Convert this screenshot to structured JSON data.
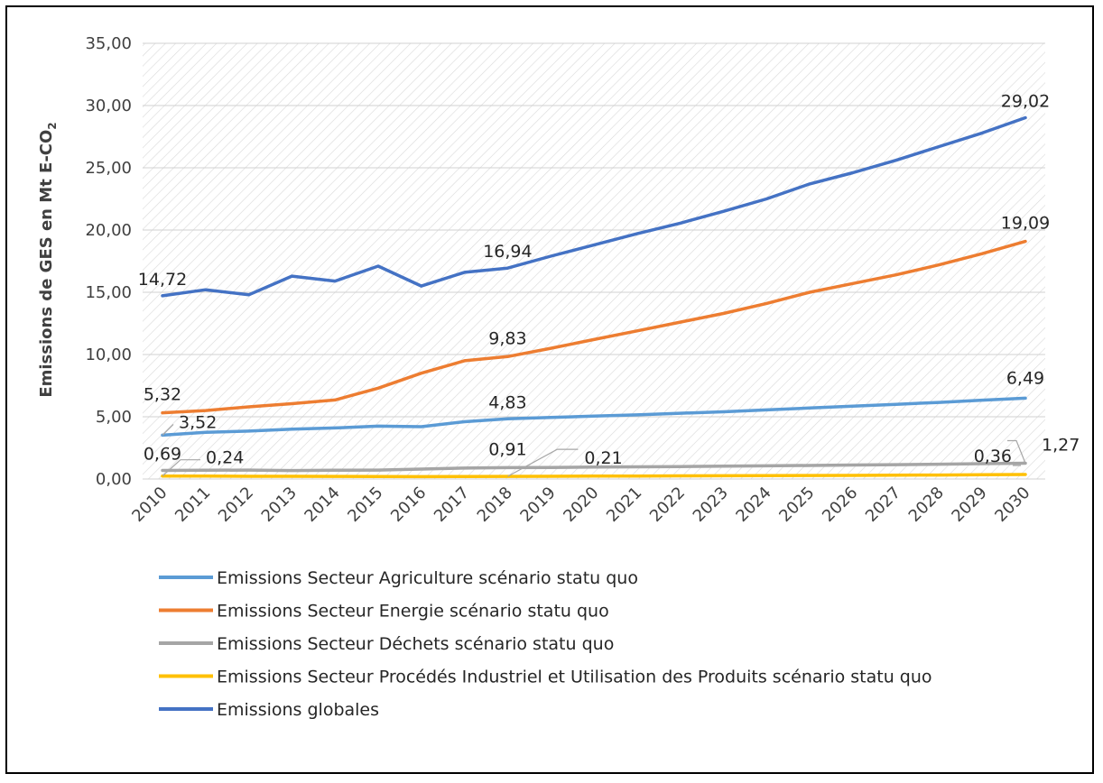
{
  "chart_data": {
    "type": "line",
    "ylabel": "Emissions de GES en Mt E-CO",
    "ylabel_subscript": "2",
    "ylim": [
      0,
      35
    ],
    "ytick_labels": [
      "0,00",
      "5,00",
      "10,00",
      "15,00",
      "20,00",
      "25,00",
      "30,00",
      "35,00"
    ],
    "grid": true,
    "legend_position": "bottom",
    "categories": [
      "2010",
      "2011",
      "2012",
      "2013",
      "2014",
      "2015",
      "2016",
      "2017",
      "2018",
      "2019",
      "2020",
      "2021",
      "2022",
      "2023",
      "2024",
      "2025",
      "2026",
      "2027",
      "2028",
      "2029",
      "2030"
    ],
    "series": [
      {
        "name": "Emissions Secteur Agriculture scénario statu quo",
        "color": "#5B9BD5",
        "values": [
          3.52,
          3.75,
          3.85,
          4.0,
          4.1,
          4.25,
          4.2,
          4.6,
          4.83,
          4.95,
          5.05,
          5.15,
          5.28,
          5.4,
          5.55,
          5.7,
          5.85,
          6.0,
          6.15,
          6.33,
          6.49
        ]
      },
      {
        "name": "Emissions Secteur Energie scénario statu quo",
        "color": "#ED7D31",
        "values": [
          5.32,
          5.5,
          5.8,
          6.05,
          6.35,
          7.3,
          8.5,
          9.5,
          9.83,
          10.5,
          11.2,
          11.9,
          12.6,
          13.3,
          14.1,
          15.0,
          15.7,
          16.4,
          17.2,
          18.1,
          19.09
        ]
      },
      {
        "name": "Emissions Secteur Déchets scénario statu quo",
        "color": "#A5A5A5",
        "values": [
          0.69,
          0.7,
          0.72,
          0.68,
          0.7,
          0.72,
          0.8,
          0.88,
          0.91,
          0.93,
          0.96,
          0.98,
          1.0,
          1.03,
          1.06,
          1.09,
          1.12,
          1.15,
          1.19,
          1.23,
          1.27
        ]
      },
      {
        "name": "Emissions Secteur Procédés Industriel et Utilisation des Produits scénario statu quo",
        "color": "#FFC000",
        "values": [
          0.24,
          0.23,
          0.22,
          0.22,
          0.21,
          0.2,
          0.19,
          0.2,
          0.21,
          0.22,
          0.23,
          0.24,
          0.25,
          0.26,
          0.27,
          0.28,
          0.29,
          0.31,
          0.32,
          0.34,
          0.36
        ]
      },
      {
        "name": "Emissions globales",
        "color": "#4472C4",
        "values": [
          14.72,
          15.2,
          14.8,
          16.3,
          15.9,
          17.1,
          15.5,
          16.6,
          16.94,
          17.9,
          18.8,
          19.7,
          20.55,
          21.5,
          22.5,
          23.7,
          24.6,
          25.6,
          26.7,
          27.8,
          29.02
        ]
      }
    ],
    "annotations": [
      {
        "text": "14,72",
        "series": 4,
        "index": 0
      },
      {
        "text": "16,94",
        "series": 4,
        "index": 8
      },
      {
        "text": "29,02",
        "series": 4,
        "index": 20
      },
      {
        "text": "5,32",
        "series": 1,
        "index": 0
      },
      {
        "text": "9,83",
        "series": 1,
        "index": 8
      },
      {
        "text": "19,09",
        "series": 1,
        "index": 20
      },
      {
        "text": "3,52",
        "series": 0,
        "index": 0
      },
      {
        "text": "4,83",
        "series": 0,
        "index": 8
      },
      {
        "text": "6,49",
        "series": 0,
        "index": 20
      },
      {
        "text": "0,69",
        "series": 2,
        "index": 0
      },
      {
        "text": "0,24",
        "series": 3,
        "index": 0
      },
      {
        "text": "0,91",
        "series": 2,
        "index": 8
      },
      {
        "text": "0,21",
        "series": 3,
        "index": 8
      },
      {
        "text": "0,36",
        "series": 3,
        "index": 20
      },
      {
        "text": "1,27",
        "series": 2,
        "index": 20
      }
    ]
  }
}
